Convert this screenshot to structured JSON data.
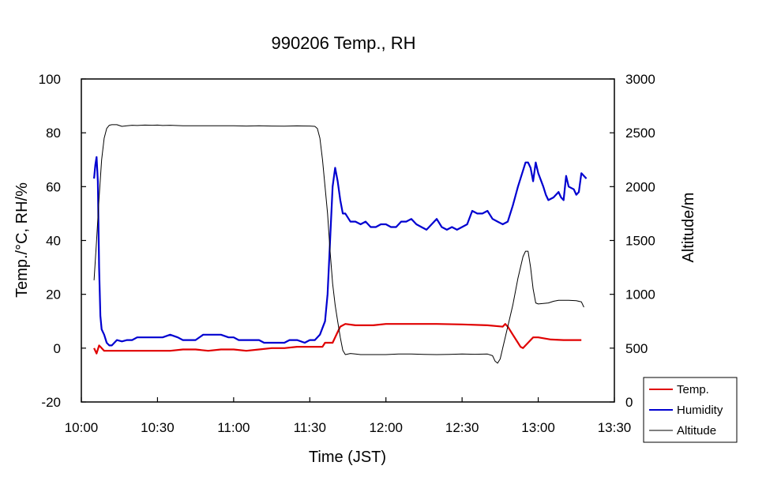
{
  "chart_data": {
    "type": "line",
    "title": "990206 Temp., RH",
    "xlabel": "Time (JST)",
    "ylabel_left": "Temp./°C, RH/%",
    "ylabel_right": "Altitude/m",
    "xlim": [
      0,
      210
    ],
    "ylim_left": [
      -20,
      100
    ],
    "ylim_right": [
      0,
      3000
    ],
    "grid": false,
    "legend_position": "bottom-right",
    "x_ticks": [
      {
        "value": 0,
        "label": "10:00"
      },
      {
        "value": 30,
        "label": "10:30"
      },
      {
        "value": 60,
        "label": "11:00"
      },
      {
        "value": 90,
        "label": "11:30"
      },
      {
        "value": 120,
        "label": "12:00"
      },
      {
        "value": 150,
        "label": "12:30"
      },
      {
        "value": 180,
        "label": "13:00"
      },
      {
        "value": 210,
        "label": "13:30"
      }
    ],
    "y_left_ticks": [
      {
        "value": 100,
        "label": "100"
      },
      {
        "value": 80,
        "label": "80"
      },
      {
        "value": 60,
        "label": "60"
      },
      {
        "value": 40,
        "label": "40"
      },
      {
        "value": 20,
        "label": "20"
      },
      {
        "value": 0,
        "label": "0"
      },
      {
        "value": -20,
        "label": "-20"
      }
    ],
    "y_right_ticks": [
      {
        "value": 3000,
        "label": "3000"
      },
      {
        "value": 2500,
        "label": "2500"
      },
      {
        "value": 2000,
        "label": "2000"
      },
      {
        "value": 1500,
        "label": "1500"
      },
      {
        "value": 1000,
        "label": "1000"
      },
      {
        "value": 500,
        "label": "500"
      },
      {
        "value": 0,
        "label": "0"
      }
    ],
    "series": [
      {
        "name": "Temp.",
        "color": "#e00000",
        "axis": "left",
        "points": [
          [
            5,
            0
          ],
          [
            6,
            -2
          ],
          [
            7,
            1
          ],
          [
            8,
            0
          ],
          [
            9,
            -1
          ],
          [
            10,
            -1
          ],
          [
            12,
            -1
          ],
          [
            14,
            -1
          ],
          [
            16,
            -1
          ],
          [
            18,
            -1
          ],
          [
            20,
            -1
          ],
          [
            25,
            -1
          ],
          [
            30,
            -1
          ],
          [
            35,
            -1
          ],
          [
            40,
            -0.5
          ],
          [
            45,
            -0.5
          ],
          [
            50,
            -1
          ],
          [
            55,
            -0.5
          ],
          [
            60,
            -0.5
          ],
          [
            65,
            -1
          ],
          [
            70,
            -0.5
          ],
          [
            75,
            0
          ],
          [
            80,
            0
          ],
          [
            85,
            0.5
          ],
          [
            90,
            0.5
          ],
          [
            95,
            0.5
          ],
          [
            96,
            2
          ],
          [
            99,
            2
          ],
          [
            101,
            6
          ],
          [
            102,
            8
          ],
          [
            104,
            9
          ],
          [
            108,
            8.5
          ],
          [
            115,
            8.5
          ],
          [
            120,
            9
          ],
          [
            130,
            9
          ],
          [
            140,
            9
          ],
          [
            150,
            8.8
          ],
          [
            160,
            8.5
          ],
          [
            166,
            8
          ],
          [
            167,
            9
          ],
          [
            168,
            8
          ],
          [
            170,
            5
          ],
          [
            172,
            2
          ],
          [
            173,
            0.5
          ],
          [
            174,
            0
          ],
          [
            176,
            2
          ],
          [
            178,
            4
          ],
          [
            180,
            4
          ],
          [
            185,
            3.2
          ],
          [
            190,
            3
          ],
          [
            195,
            3
          ],
          [
            197,
            3
          ]
        ]
      },
      {
        "name": "Humidity",
        "color": "#0000d0",
        "axis": "left",
        "points": [
          [
            5,
            63
          ],
          [
            5.5,
            68
          ],
          [
            6,
            71
          ],
          [
            6.5,
            62
          ],
          [
            7,
            30
          ],
          [
            7.5,
            12
          ],
          [
            8,
            7
          ],
          [
            9,
            5
          ],
          [
            10,
            2
          ],
          [
            11,
            1
          ],
          [
            12,
            1
          ],
          [
            13,
            2
          ],
          [
            14,
            3
          ],
          [
            16,
            2.5
          ],
          [
            18,
            3
          ],
          [
            20,
            3
          ],
          [
            22,
            4
          ],
          [
            25,
            4
          ],
          [
            28,
            4
          ],
          [
            30,
            4
          ],
          [
            32,
            4
          ],
          [
            35,
            5
          ],
          [
            38,
            4
          ],
          [
            40,
            3
          ],
          [
            42,
            3
          ],
          [
            45,
            3
          ],
          [
            48,
            5
          ],
          [
            50,
            5
          ],
          [
            55,
            5
          ],
          [
            58,
            4
          ],
          [
            60,
            4
          ],
          [
            62,
            3
          ],
          [
            65,
            3
          ],
          [
            70,
            3
          ],
          [
            72,
            2
          ],
          [
            75,
            2
          ],
          [
            78,
            2
          ],
          [
            80,
            2
          ],
          [
            82,
            3
          ],
          [
            85,
            3
          ],
          [
            88,
            2
          ],
          [
            90,
            3
          ],
          [
            92,
            3
          ],
          [
            94,
            5
          ],
          [
            96,
            10
          ],
          [
            97,
            20
          ],
          [
            98,
            40
          ],
          [
            99,
            60
          ],
          [
            100,
            67
          ],
          [
            101,
            62
          ],
          [
            102,
            55
          ],
          [
            103,
            50
          ],
          [
            104,
            50
          ],
          [
            106,
            47
          ],
          [
            108,
            47
          ],
          [
            110,
            46
          ],
          [
            112,
            47
          ],
          [
            114,
            45
          ],
          [
            116,
            45
          ],
          [
            118,
            46
          ],
          [
            120,
            46
          ],
          [
            122,
            45
          ],
          [
            124,
            45
          ],
          [
            126,
            47
          ],
          [
            128,
            47
          ],
          [
            130,
            48
          ],
          [
            132,
            46
          ],
          [
            134,
            45
          ],
          [
            136,
            44
          ],
          [
            138,
            46
          ],
          [
            140,
            48
          ],
          [
            142,
            45
          ],
          [
            144,
            44
          ],
          [
            146,
            45
          ],
          [
            148,
            44
          ],
          [
            150,
            45
          ],
          [
            152,
            46
          ],
          [
            154,
            51
          ],
          [
            156,
            50
          ],
          [
            158,
            50
          ],
          [
            160,
            51
          ],
          [
            162,
            48
          ],
          [
            164,
            47
          ],
          [
            166,
            46
          ],
          [
            168,
            47
          ],
          [
            170,
            53
          ],
          [
            172,
            60
          ],
          [
            174,
            66
          ],
          [
            175,
            69
          ],
          [
            176,
            69
          ],
          [
            177,
            67
          ],
          [
            178,
            62
          ],
          [
            179,
            69
          ],
          [
            180,
            65
          ],
          [
            182,
            60
          ],
          [
            183,
            57
          ],
          [
            184,
            55
          ],
          [
            186,
            56
          ],
          [
            188,
            58
          ],
          [
            189,
            56
          ],
          [
            190,
            55
          ],
          [
            191,
            64
          ],
          [
            192,
            60
          ],
          [
            194,
            59
          ],
          [
            195,
            57
          ],
          [
            196,
            58
          ],
          [
            197,
            65
          ],
          [
            198,
            64
          ],
          [
            199,
            63
          ]
        ]
      },
      {
        "name": "Altitude",
        "color": "#000000",
        "axis": "right",
        "points": [
          [
            5,
            1130
          ],
          [
            6,
            1500
          ],
          [
            7,
            1900
          ],
          [
            8,
            2250
          ],
          [
            9,
            2450
          ],
          [
            10,
            2540
          ],
          [
            11,
            2570
          ],
          [
            12,
            2575
          ],
          [
            14,
            2575
          ],
          [
            16,
            2560
          ],
          [
            18,
            2565
          ],
          [
            20,
            2570
          ],
          [
            22,
            2568
          ],
          [
            25,
            2572
          ],
          [
            28,
            2570
          ],
          [
            30,
            2572
          ],
          [
            32,
            2568
          ],
          [
            35,
            2570
          ],
          [
            40,
            2566
          ],
          [
            45,
            2565
          ],
          [
            50,
            2566
          ],
          [
            55,
            2565
          ],
          [
            60,
            2566
          ],
          [
            65,
            2563
          ],
          [
            70,
            2565
          ],
          [
            75,
            2563
          ],
          [
            80,
            2562
          ],
          [
            85,
            2564
          ],
          [
            90,
            2563
          ],
          [
            92,
            2560
          ],
          [
            93,
            2540
          ],
          [
            94,
            2450
          ],
          [
            95,
            2250
          ],
          [
            96,
            2000
          ],
          [
            97,
            1750
          ],
          [
            98,
            1400
          ],
          [
            99,
            1100
          ],
          [
            100,
            900
          ],
          [
            101,
            750
          ],
          [
            102,
            600
          ],
          [
            103,
            480
          ],
          [
            104,
            440
          ],
          [
            106,
            450
          ],
          [
            108,
            445
          ],
          [
            110,
            440
          ],
          [
            115,
            440
          ],
          [
            120,
            440
          ],
          [
            125,
            445
          ],
          [
            130,
            445
          ],
          [
            135,
            442
          ],
          [
            140,
            440
          ],
          [
            145,
            442
          ],
          [
            150,
            445
          ],
          [
            155,
            443
          ],
          [
            160,
            445
          ],
          [
            162,
            430
          ],
          [
            163,
            380
          ],
          [
            164,
            360
          ],
          [
            165,
            400
          ],
          [
            166,
            500
          ],
          [
            168,
            700
          ],
          [
            170,
            900
          ],
          [
            172,
            1150
          ],
          [
            174,
            1350
          ],
          [
            175,
            1400
          ],
          [
            176,
            1400
          ],
          [
            177,
            1250
          ],
          [
            178,
            1050
          ],
          [
            179,
            920
          ],
          [
            180,
            910
          ],
          [
            184,
            920
          ],
          [
            186,
            935
          ],
          [
            188,
            945
          ],
          [
            192,
            945
          ],
          [
            195,
            940
          ],
          [
            197,
            930
          ],
          [
            198,
            880
          ]
        ]
      }
    ]
  }
}
